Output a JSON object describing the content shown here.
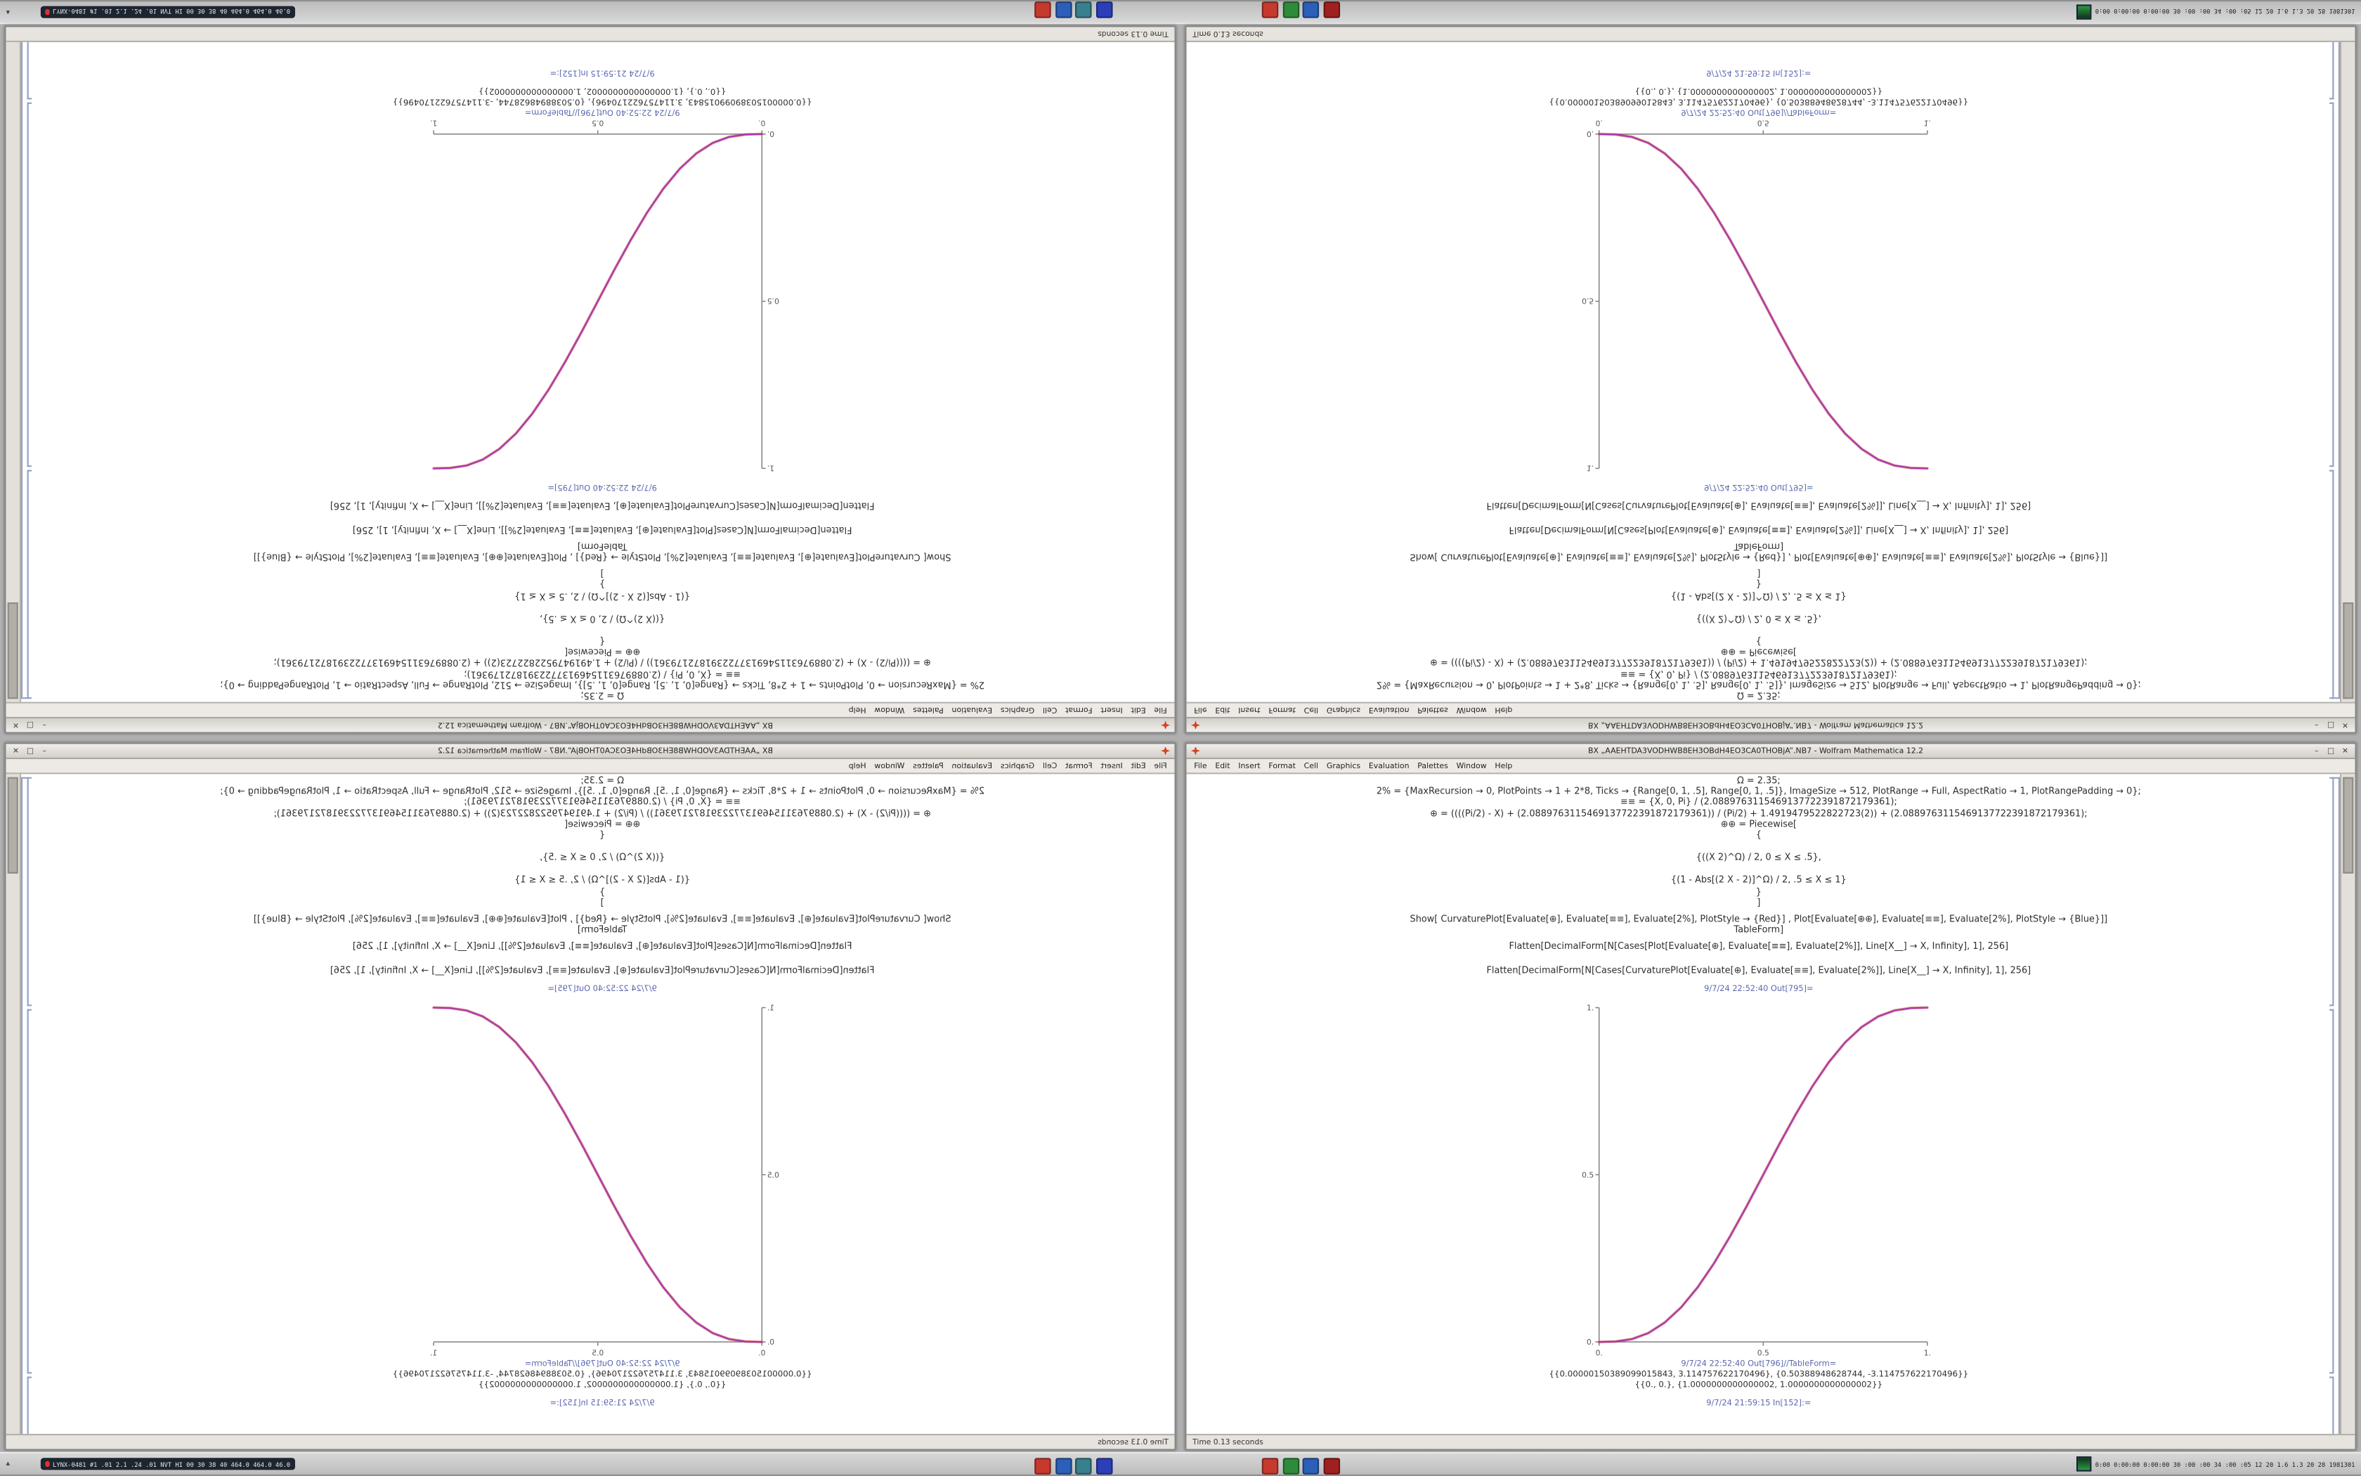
{
  "screen": {
    "description": "Four copies of the same Wolfram Mathematica notebook window arranged in a 2x2 grid; top-left copy rotated 180 degrees, top-right flipped vertically, bottom-left mirrored horizontally, bottom-right normal. Identical system taskbars run along the top (flipped) and bottom edges."
  },
  "windows": [
    {
      "position": "top-left",
      "orientation": "rotated-180"
    },
    {
      "position": "top-right",
      "orientation": "flipped-vertical"
    },
    {
      "position": "bottom-left",
      "orientation": "mirrored-horizontal"
    },
    {
      "position": "bottom-right",
      "orientation": "normal"
    }
  ],
  "window": {
    "title": "BX „AAEHTDA3VODHWB8EH3OBdH4EO3CA0THOBjA”.NB7 - Wolfram Mathematica 12.2",
    "controls": {
      "minimize": "–",
      "maximize": "□",
      "close": "✕"
    },
    "menu": [
      "File",
      "Edit",
      "Insert",
      "Format",
      "Cell",
      "Graphics",
      "Evaluation",
      "Palettes",
      "Window",
      "Help"
    ],
    "status_left": "Time 0.13 seconds",
    "cells": {
      "assign": "Ω = 2.35;",
      "options": "2% = {MaxRecursion → 0, PlotPoints → 1 + 2*8, Ticks → {Range[0, 1, .5], Range[0, 1, .5]}, ImageSize → 512, PlotRange → Full, AspectRatio → 1, PlotRangePadding → 0};",
      "range": "≡≡ = {X, 0, Pi} / (2.0889763115469137722391872179361);",
      "curvature": "⊕ = ((((Pi/2) - X) + (2.0889763115469137722391872179361)) / (Pi/2) + 1.4919479522822723(2)) + (2.0889763115469137722391872179361);",
      "piecewise_head": "⊕⊕ = Piecewise[",
      "brace_open": "{",
      "piece1": "{((X 2)^Ω) / 2,  0 ≤ X ≤ .5},",
      "piece2": "{(1 - Abs[(2 X - 2)]^Ω) / 2,  .5 ≤ X ≤ 1}",
      "brace_close": "}",
      "bracket_close": "]",
      "show": "Show[  CurvaturePlot[Evaluate[⊕], Evaluate[≡≡], Evaluate[2%], PlotStyle → {Red}] ,  Plot[Evaluate[⊕⊕], Evaluate[≡≡], Evaluate[2%], PlotStyle → {Blue}]]",
      "tableform": "TableForm]",
      "flatten_plot": "Flatten[DecimalForm[N[Cases[Plot[Evaluate[⊕], Evaluate[≡≡], Evaluate[2%]], Line[X__] → X, Infinity], 1], 256]",
      "flatten_curvature": "Flatten[DecimalForm[N[Cases[CurvaturePlot[Evaluate[⊕], Evaluate[≡≡], Evaluate[2%]], Line[X__] → X, Infinity], 1], 256]",
      "out_label_plot": "9/7/24 22:52:40 Out[795]=",
      "out_label_table": "9/7/24 22:52:40 Out[796]//TableForm=",
      "out_row1": "{{0.00000150389099015843, 3.114757622170496}, {0.50388948628744, -3.114757622170496}}",
      "out_row2": "{{0., 0.}, {1.0000000000000002, 1.0000000000000002}}",
      "in_label_next": "9/7/24 21:59:15 In[152]:="
    }
  },
  "chart_data": {
    "type": "line",
    "title": "",
    "xlabel": "",
    "ylabel": "",
    "xlim": [
      0,
      1
    ],
    "ylim": [
      0,
      1
    ],
    "xticks": [
      "0.",
      "0.5",
      "1."
    ],
    "yticks": [
      "0.",
      "0.5",
      "1."
    ],
    "grid": false,
    "legend": "none",
    "note": "Two coincident sigmoid curves (red CurvaturePlot + blue Plot) overlap and appear magenta",
    "series": [
      {
        "name": "CurvaturePlot (Red)",
        "color": "#e03a2e"
      },
      {
        "name": "Plot (Blue)",
        "color": "#4040d8"
      }
    ],
    "overlay_color": "#b137ad",
    "x": [
      0,
      0.05,
      0.1,
      0.15,
      0.2,
      0.25,
      0.3,
      0.35,
      0.4,
      0.45,
      0.5,
      0.55,
      0.6,
      0.65,
      0.7,
      0.75,
      0.8,
      0.85,
      0.9,
      0.95,
      1
    ],
    "y": [
      0,
      0.0012,
      0.0086,
      0.0266,
      0.0579,
      0.1035,
      0.1631,
      0.2352,
      0.3174,
      0.4069,
      0.5,
      0.5931,
      0.6826,
      0.7648,
      0.8369,
      0.8965,
      0.9421,
      0.9734,
      0.9914,
      0.9988,
      1
    ]
  },
  "taskbar": {
    "show_desktop": "▴",
    "system_badge": "LYNX-0481 #1 .01 2.1 .24 .01 NVT HI 00 30 38 40 464.0 464.0 46.0",
    "tray_stats": "0:00 0:00:00 0:00:00 30 :00 :00 34 :00 :05 12 20 1.6 1.3 20 28 1981301",
    "apps_left": [
      {
        "name": "app-red",
        "color": "#c63a2e"
      },
      {
        "name": "app-blue",
        "color": "#2b5fb8"
      },
      {
        "name": "app-teal",
        "color": "#37808e"
      },
      {
        "name": "app-indigo",
        "color": "#2b3fb8"
      }
    ],
    "apps_right": [
      {
        "name": "app-red-2",
        "color": "#c63a2e"
      },
      {
        "name": "app-green",
        "color": "#2e8b3a"
      },
      {
        "name": "app-blue-2",
        "color": "#2b5fb8"
      },
      {
        "name": "app-darkred",
        "color": "#a02020"
      }
    ]
  }
}
